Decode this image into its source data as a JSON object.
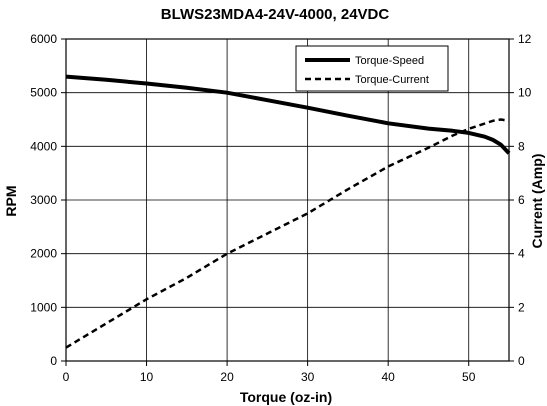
{
  "chart_data": {
    "type": "line",
    "title": "BLWS23MDA4-24V-4000, 24VDC",
    "xlabel": "Torque (oz-in)",
    "ylabel": "RPM",
    "y2label": "Current (Amp)",
    "xlim": [
      0,
      55
    ],
    "ylim": [
      0,
      6000
    ],
    "y2lim": [
      0,
      12
    ],
    "xticks": [
      0,
      10,
      20,
      30,
      40,
      50
    ],
    "yticks": [
      0,
      1000,
      2000,
      3000,
      4000,
      5000,
      6000
    ],
    "y2ticks": [
      0,
      2,
      4,
      6,
      8,
      10,
      12
    ],
    "grid": true,
    "legend_position": "top-right",
    "series": [
      {
        "name": "Torque-Speed",
        "axis": "left",
        "style": "solid",
        "x": [
          0,
          5,
          10,
          15,
          20,
          25,
          30,
          35,
          40,
          45,
          48,
          50,
          52,
          53,
          54,
          55
        ],
        "y": [
          5300,
          5240,
          5170,
          5090,
          5000,
          4860,
          4720,
          4570,
          4430,
          4330,
          4290,
          4250,
          4180,
          4120,
          4030,
          3870
        ]
      },
      {
        "name": "Torque-Current",
        "axis": "right",
        "style": "dashed",
        "x": [
          0,
          5,
          10,
          15,
          20,
          25,
          30,
          35,
          40,
          45,
          48,
          50,
          52,
          53,
          54,
          55
        ],
        "y": [
          0.5,
          1.4,
          2.3,
          3.1,
          4.0,
          4.75,
          5.5,
          6.4,
          7.25,
          7.95,
          8.4,
          8.65,
          8.85,
          8.95,
          9.0,
          8.95
        ]
      }
    ]
  }
}
